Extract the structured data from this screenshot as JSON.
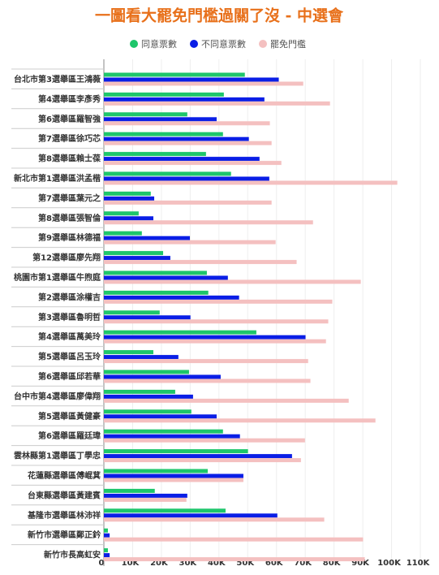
{
  "chart_data": {
    "type": "hbar",
    "title": "一圖看大罷免門檻過關了沒 - 中選會",
    "categories": [
      "台北市第3選舉區王鴻薇",
      "第4選舉區李彥秀",
      "第6選舉區羅智強",
      "第7選舉區徐巧芯",
      "第8選舉區賴士葆",
      "新北市第1選舉區洪孟楷",
      "第7選舉區葉元之",
      "第8選舉區張智倫",
      "第9選舉區林德福",
      "第12選舉區廖先翔",
      "桃園市第1選舉區牛煦庭",
      "第2選舉區涂權吉",
      "第3選舉區魯明哲",
      "第4選舉區萬美玲",
      "第5選舉區呂玉玲",
      "第6選舉區邱若華",
      "台中市第4選舉區廖偉翔",
      "第5選舉區黃健豪",
      "第6選舉區羅廷瑋",
      "雲林縣第1選舉區丁學忠",
      "花蓮縣選舉區傅崐萁",
      "台東縣選舉區黃建賓",
      "基隆市選舉區林沛祥",
      "新竹市選舉區鄭正鈐",
      "新竹市長高虹安"
    ],
    "series": [
      {
        "name": "同意票數",
        "color": "#1ec66b",
        "values": [
          49000,
          41700,
          29000,
          41400,
          35500,
          44200,
          16300,
          12100,
          13200,
          20600,
          35800,
          36300,
          19400,
          53000,
          17200,
          29600,
          24800,
          30400,
          41400,
          50100,
          36100,
          17700,
          42300,
          1400,
          1400
        ]
      },
      {
        "name": "不同意票數",
        "color": "#0a1ee6",
        "values": [
          60800,
          55800,
          39200,
          50400,
          54100,
          57500,
          17500,
          17200,
          29900,
          23100,
          43100,
          47000,
          30100,
          70100,
          25900,
          40600,
          31000,
          39200,
          47300,
          65400,
          48500,
          29000,
          60300,
          2000,
          2000
        ]
      },
      {
        "name": "罷免門檻",
        "color": "#f4c0c0",
        "values": [
          69300,
          78600,
          57700,
          58300,
          61700,
          102000,
          58300,
          72700,
          59700,
          67000,
          89300,
          79400,
          78000,
          77200,
          71000,
          71800,
          85100,
          94400,
          69900,
          68500,
          48500,
          28700,
          76600,
          90100,
          90700
        ]
      }
    ],
    "xlim": [
      0,
      110000
    ],
    "xticks": [
      0,
      {
        "value": 10000,
        "label": "10K"
      },
      {
        "value": 20000,
        "label": "20K"
      },
      {
        "value": 30000,
        "label": "30K"
      },
      {
        "value": 40000,
        "label": "40K"
      },
      {
        "value": 50000,
        "label": "50K"
      },
      {
        "value": 60000,
        "label": "60K"
      },
      {
        "value": 70000,
        "label": "70K"
      },
      {
        "value": 80000,
        "label": "80K"
      },
      {
        "value": 90000,
        "label": "90K"
      },
      {
        "value": 100000,
        "label": "100K"
      },
      {
        "value": 110000,
        "label": "110K"
      }
    ],
    "grid": true
  }
}
